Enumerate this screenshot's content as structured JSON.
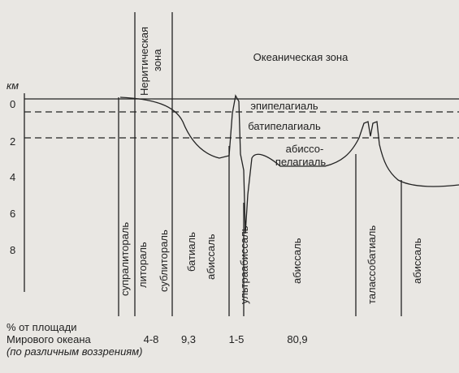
{
  "header": {
    "oceanic_zone": "Океаническая зона",
    "neritic_zone": [
      "Неритическая",
      "зона"
    ]
  },
  "depth_axis": {
    "unit": "км",
    "ticks": [
      "0",
      "2",
      "4",
      "6",
      "8"
    ]
  },
  "pelagic_zones": [
    "эпипелагиаль",
    "батипелагиаль",
    "абиссо-",
    "пелагиаль"
  ],
  "benthic_zones": [
    "супралитораль",
    "литораль",
    "сублитораль",
    "батиаль",
    "абиссаль",
    "ультраабиссаль",
    "абиссаль",
    "талассобатиаль",
    "абиссаль"
  ],
  "area": {
    "caption": [
      "% от площади",
      "Мирового океана",
      "(по различным воззрениям)"
    ],
    "values": [
      "4-8",
      "9,3",
      "1-5",
      "80,9"
    ]
  }
}
